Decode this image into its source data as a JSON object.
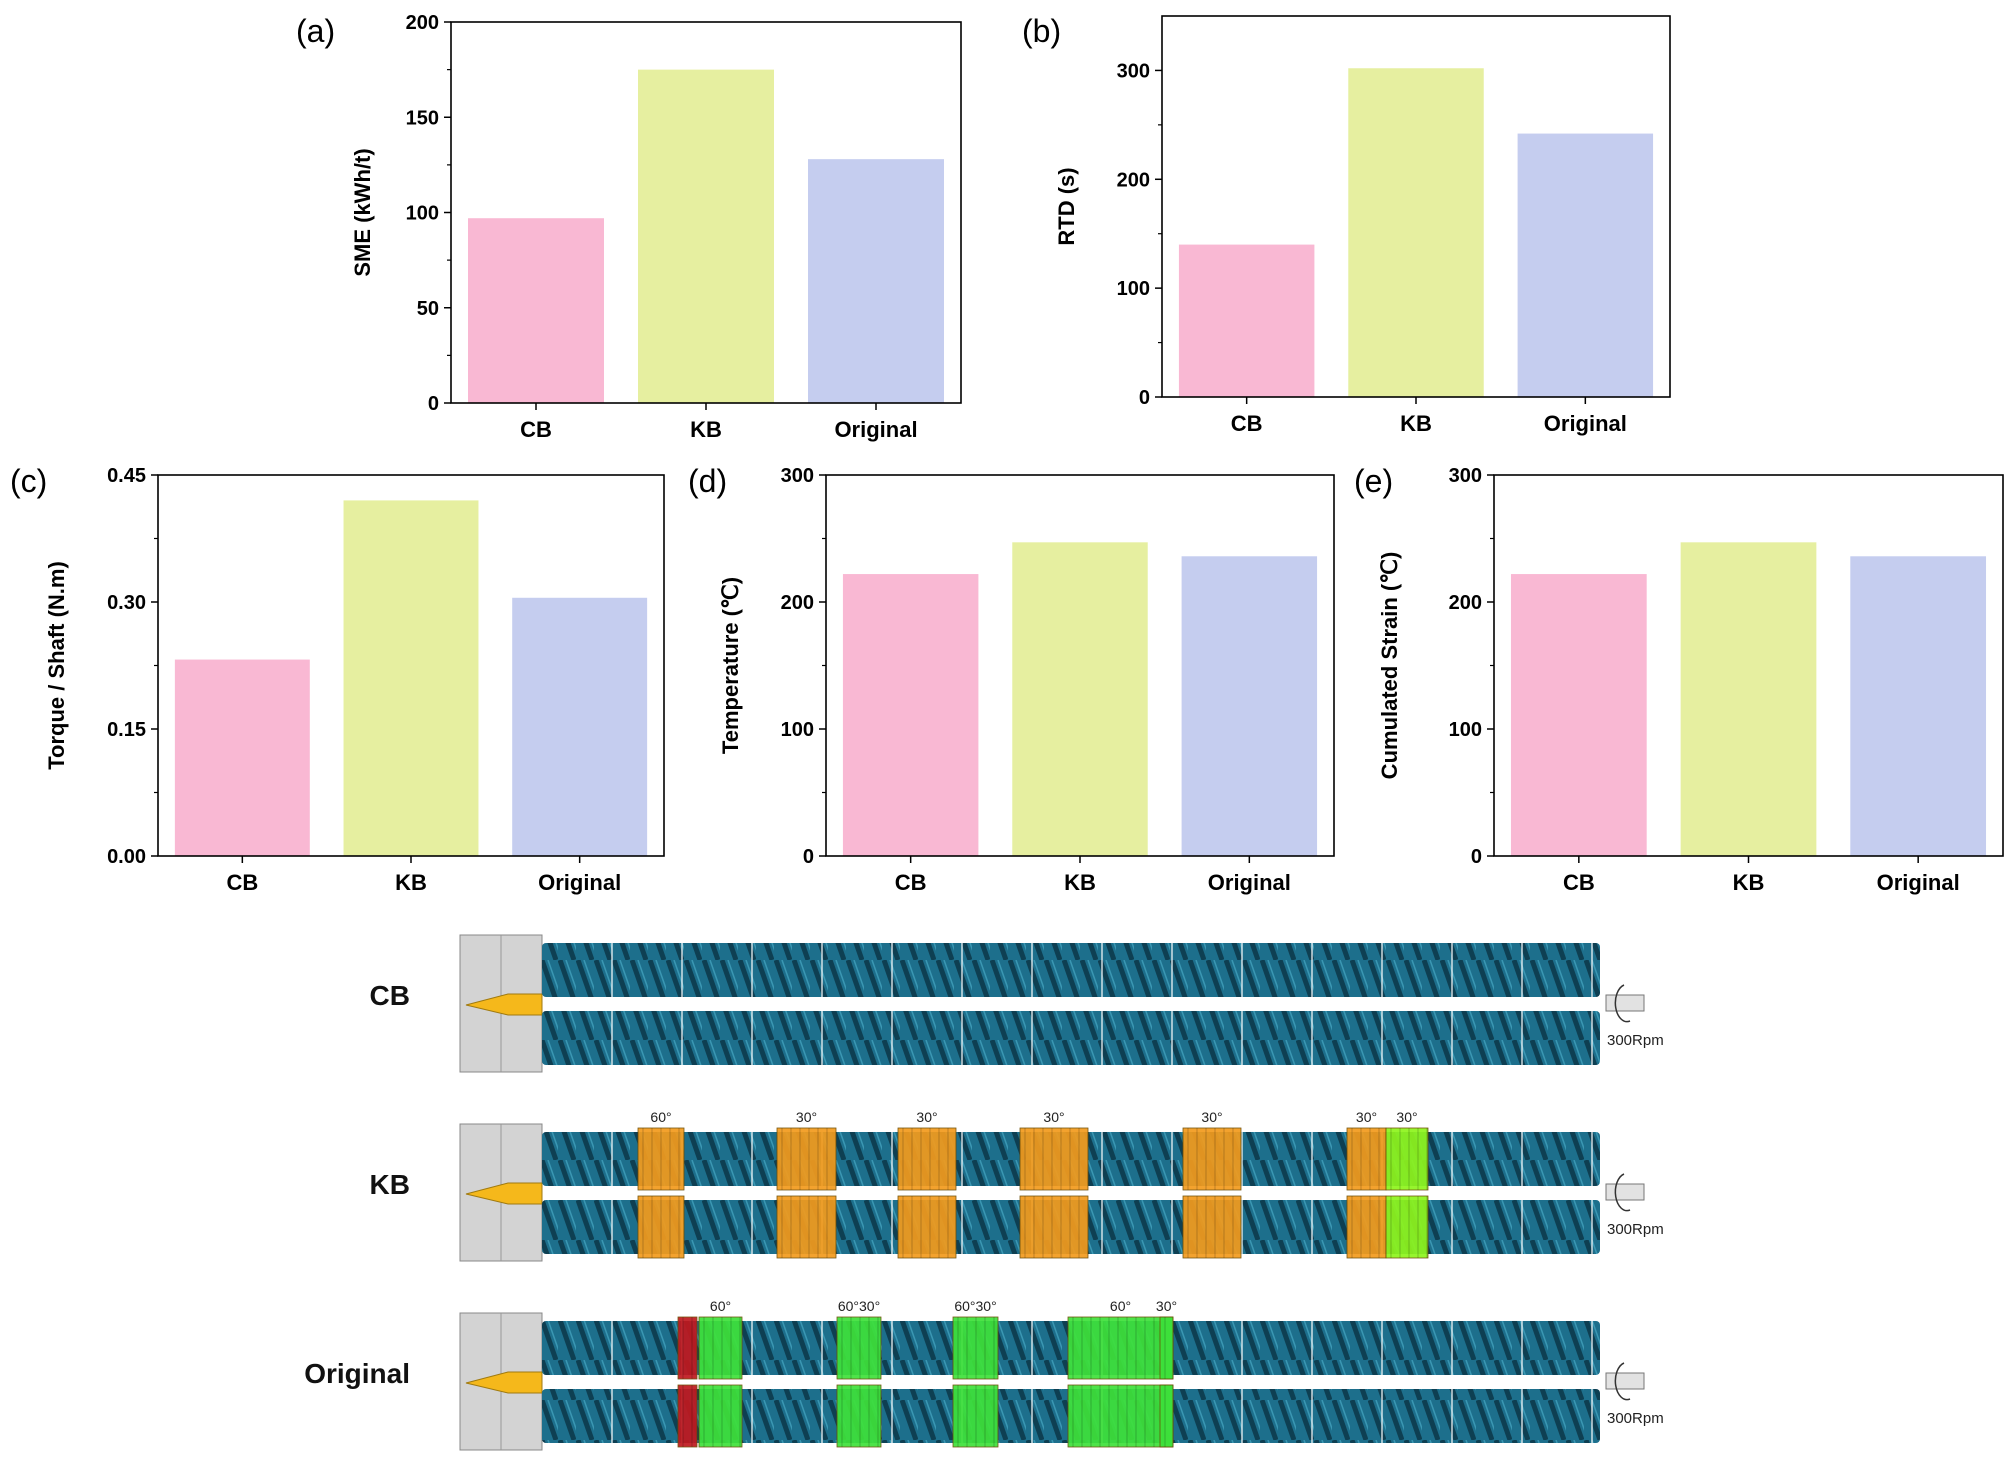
{
  "chart_data": [
    {
      "type": "bar",
      "panel": "(a)",
      "categories": [
        "CB",
        "KB",
        "Original"
      ],
      "values": [
        97,
        175,
        128
      ],
      "ylabel": "SME (kWh/t)",
      "ylim": [
        0,
        200
      ],
      "yticks": [
        0,
        50,
        100,
        150,
        200
      ],
      "ytick_labels": [
        "0",
        "50",
        "100",
        "150",
        "200"
      ]
    },
    {
      "type": "bar",
      "panel": "(b)",
      "categories": [
        "CB",
        "KB",
        "Original"
      ],
      "values": [
        140,
        302,
        242
      ],
      "ylabel": "RTD (s)",
      "ylim": [
        0,
        350
      ],
      "yticks": [
        0,
        100,
        200,
        300
      ],
      "ytick_labels": [
        "0",
        "100",
        "200",
        "300"
      ]
    },
    {
      "type": "bar",
      "panel": "(c)",
      "categories": [
        "CB",
        "KB",
        "Original"
      ],
      "values": [
        0.232,
        0.42,
        0.305
      ],
      "ylabel": "Torque / Shaft (N.m)",
      "ylim": [
        0,
        0.45
      ],
      "yticks": [
        0,
        0.15,
        0.3,
        0.45
      ],
      "ytick_labels": [
        "0.00",
        "0.15",
        "0.30",
        "0.45"
      ]
    },
    {
      "type": "bar",
      "panel": "(d)",
      "categories": [
        "CB",
        "KB",
        "Original"
      ],
      "values": [
        222,
        247,
        236
      ],
      "ylabel": "Temperature (℃)",
      "ylim": [
        0,
        300
      ],
      "yticks": [
        0,
        100,
        200,
        300
      ],
      "ytick_labels": [
        "0",
        "100",
        "200",
        "300"
      ]
    },
    {
      "type": "bar",
      "panel": "(e)",
      "categories": [
        "CB",
        "KB",
        "Original"
      ],
      "values": [
        222,
        247,
        236
      ],
      "ylabel": "Cumulated Strain (℃)",
      "ylim": [
        0,
        300
      ],
      "yticks": [
        0,
        100,
        200,
        300
      ],
      "ytick_labels": [
        "0",
        "100",
        "200",
        "300"
      ]
    }
  ],
  "bar_colors": [
    "#f9b8d3",
    "#e6efa0",
    "#c5cdef"
  ],
  "screws": [
    {
      "label": "CB",
      "rpm": "300Rpm",
      "blocks": []
    },
    {
      "label": "KB",
      "rpm": "300Rpm",
      "blocks": [
        {
          "type": "kneading",
          "color": "#f29b1d",
          "angle": "60°"
        },
        {
          "type": "kneading",
          "color": "#f29b1d",
          "angle": "30°"
        },
        {
          "type": "kneading",
          "color": "#f29b1d",
          "angle": "30°"
        },
        {
          "type": "kneading",
          "color": "#f29b1d",
          "angle": "30°"
        },
        {
          "type": "kneading",
          "color": "#f29b1d",
          "angle": "30°"
        },
        {
          "type": "kneading",
          "color": "#f29b1d",
          "angle": "30°"
        },
        {
          "type": "kneading",
          "color": "#8ef51c",
          "angle": "30°"
        }
      ]
    },
    {
      "label": "Original",
      "rpm": "300Rpm",
      "blocks": [
        {
          "type": "reverse",
          "color": "#c0181f",
          "angle": ""
        },
        {
          "type": "kneading",
          "color": "#3ee13a",
          "angle": "60°"
        },
        {
          "type": "kneading",
          "color": "#3ee13a",
          "angle": "60°30°"
        },
        {
          "type": "kneading",
          "color": "#3ee13a",
          "angle": "60°30°"
        },
        {
          "type": "kneading",
          "color": "#3ee13a",
          "angle": "60°"
        },
        {
          "type": "kneading",
          "color": "#3ee13a",
          "angle": "30°"
        }
      ]
    }
  ],
  "screw_colors": {
    "barrel": "#d3d3d3",
    "flight": "#1d6f8c",
    "flight_dark": "#0e3f52",
    "nozzle": "#f5b81b"
  }
}
